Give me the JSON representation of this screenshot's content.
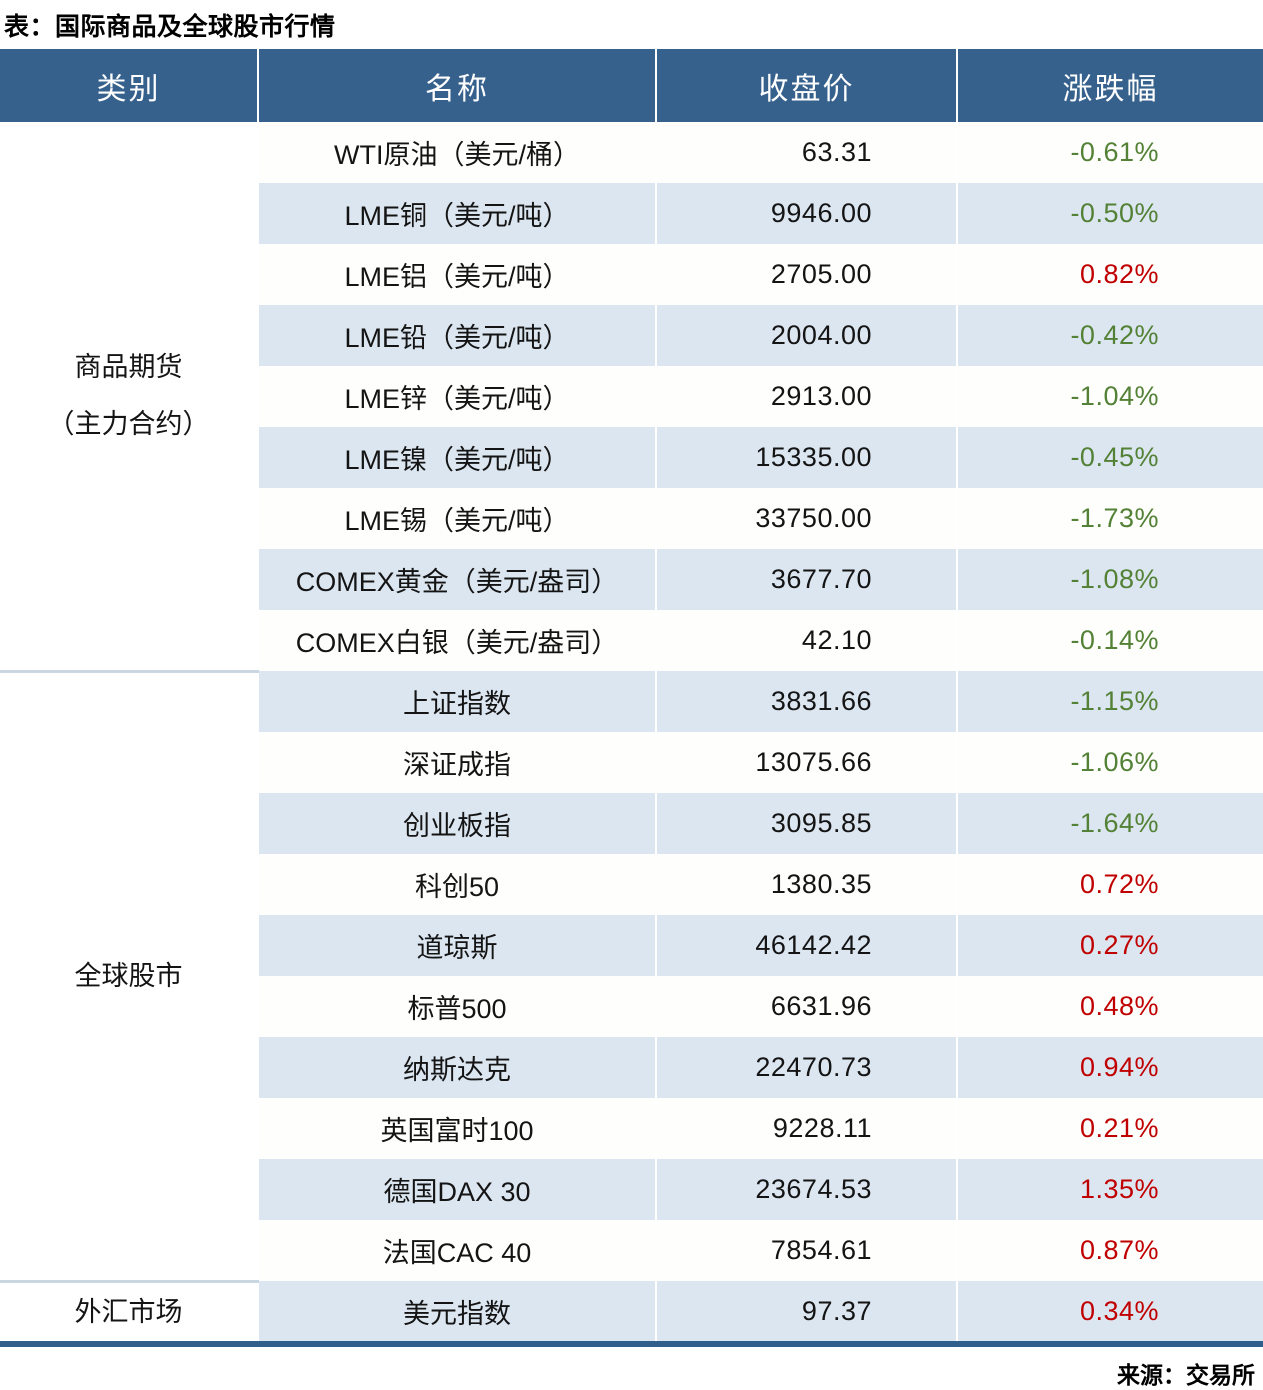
{
  "title": "表：国际商品及全球股市行情",
  "source": "来源：交易所",
  "columns": {
    "category": "类别",
    "name": "名称",
    "close": "收盘价",
    "change": "涨跌幅"
  },
  "categories": [
    {
      "label_line1": "商品期货",
      "label_line2": "（主力合约）",
      "rows": 9
    },
    {
      "label": "全球股市",
      "rows": 10
    },
    {
      "label": "外汇市场",
      "rows": 1
    }
  ],
  "rows": [
    {
      "name": "WTI原油（美元/桶）",
      "close": "63.31",
      "change": "-0.61%",
      "direction": "down"
    },
    {
      "name": "LME铜（美元/吨）",
      "close": "9946.00",
      "change": "-0.50%",
      "direction": "down"
    },
    {
      "name": "LME铝（美元/吨）",
      "close": "2705.00",
      "change": "0.82%",
      "direction": "up"
    },
    {
      "name": "LME铅（美元/吨）",
      "close": "2004.00",
      "change": "-0.42%",
      "direction": "down"
    },
    {
      "name": "LME锌（美元/吨）",
      "close": "2913.00",
      "change": "-1.04%",
      "direction": "down"
    },
    {
      "name": "LME镍（美元/吨）",
      "close": "15335.00",
      "change": "-0.45%",
      "direction": "down"
    },
    {
      "name": "LME锡（美元/吨）",
      "close": "33750.00",
      "change": "-1.73%",
      "direction": "down"
    },
    {
      "name": "COMEX黄金（美元/盎司）",
      "close": "3677.70",
      "change": "-1.08%",
      "direction": "down"
    },
    {
      "name": "COMEX白银（美元/盎司）",
      "close": "42.10",
      "change": "-0.14%",
      "direction": "down"
    },
    {
      "name": "上证指数",
      "close": "3831.66",
      "change": "-1.15%",
      "direction": "down"
    },
    {
      "name": "深证成指",
      "close": "13075.66",
      "change": "-1.06%",
      "direction": "down"
    },
    {
      "name": "创业板指",
      "close": "3095.85",
      "change": "-1.64%",
      "direction": "down"
    },
    {
      "name": "科创50",
      "close": "1380.35",
      "change": "0.72%",
      "direction": "up"
    },
    {
      "name": "道琼斯",
      "close": "46142.42",
      "change": "0.27%",
      "direction": "up"
    },
    {
      "name": "标普500",
      "close": "6631.96",
      "change": "0.48%",
      "direction": "up"
    },
    {
      "name": "纳斯达克",
      "close": "22470.73",
      "change": "0.94%",
      "direction": "up"
    },
    {
      "name": "英国富时100",
      "close": "9228.11",
      "change": "0.21%",
      "direction": "up"
    },
    {
      "name": "德国DAX 30",
      "close": "23674.53",
      "change": "1.35%",
      "direction": "up"
    },
    {
      "name": "法国CAC 40",
      "close": "7854.61",
      "change": "0.87%",
      "direction": "up"
    },
    {
      "name": "美元指数",
      "close": "97.37",
      "change": "0.34%",
      "direction": "up"
    }
  ],
  "colors": {
    "header_bg": "#36618D",
    "stripe_bg": "#DCE6F1",
    "up_red": "#C00000",
    "down_green": "#538135",
    "bottom_border": "#305F8C"
  }
}
